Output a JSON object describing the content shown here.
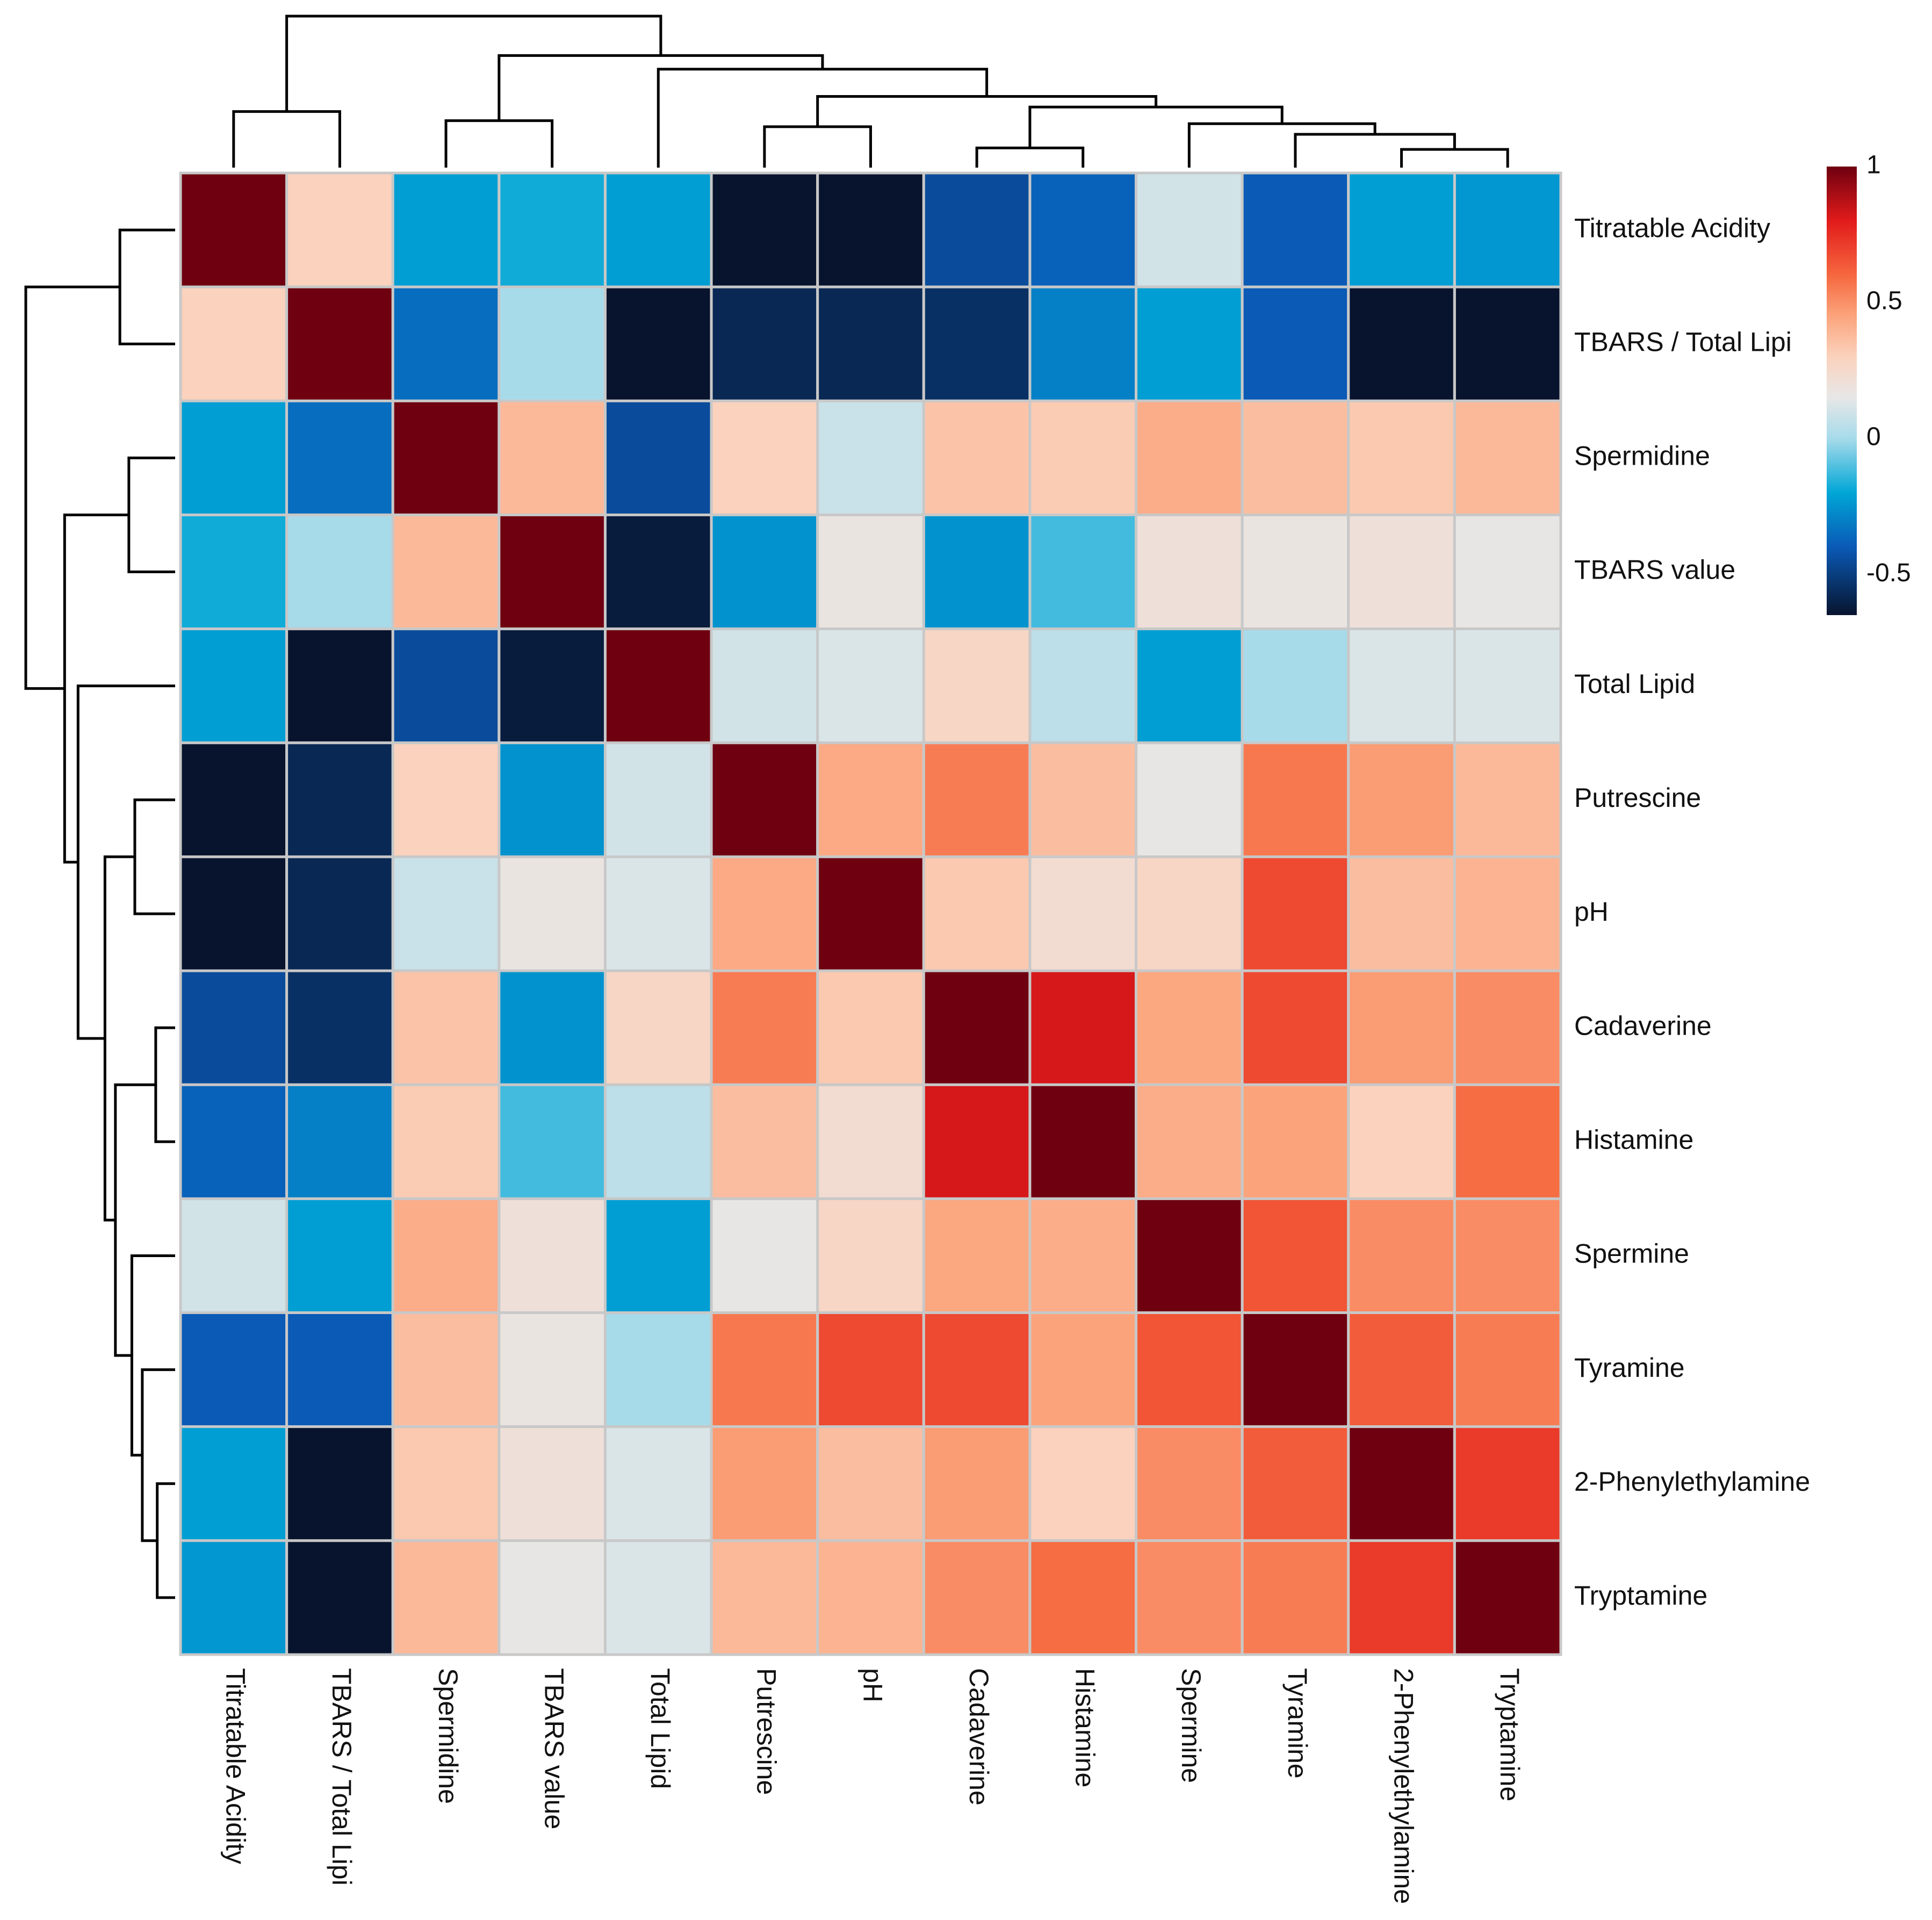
{
  "chart_data": {
    "type": "heatmap",
    "title": "",
    "row_labels": [
      "Titratable Acidity",
      "TBARS / Total Lipi",
      "Spermidine",
      "TBARS value",
      "Total Lipid",
      "Putrescine",
      "pH",
      "Cadaverine",
      "Histamine",
      "Spermine",
      "Tyramine",
      "2-Phenylethylamine",
      "Tryptamine"
    ],
    "col_labels": [
      "Titratable Acidity",
      "TBARS / Total Lipi",
      "Spermidine",
      "TBARS value",
      "Total Lipid",
      "Putrescine",
      "pH",
      "Cadaverine",
      "Histamine",
      "Spermine",
      "Tyramine",
      "2-Phenylethylamine",
      "Tryptamine"
    ],
    "values": [
      [
        1.0,
        0.3,
        -0.22,
        -0.18,
        -0.22,
        -0.65,
        -0.72,
        -0.45,
        -0.38,
        0.1,
        -0.4,
        -0.22,
        -0.24
      ],
      [
        0.3,
        1.0,
        -0.35,
        0.0,
        -0.7,
        -0.58,
        -0.58,
        -0.55,
        -0.3,
        -0.22,
        -0.4,
        -0.65,
        -0.65
      ],
      [
        -0.22,
        -0.35,
        1.0,
        0.38,
        -0.45,
        0.3,
        0.08,
        0.35,
        0.32,
        0.42,
        0.37,
        0.33,
        0.38
      ],
      [
        -0.18,
        0.0,
        0.38,
        1.0,
        -0.62,
        -0.25,
        0.17,
        -0.25,
        -0.12,
        0.2,
        0.17,
        0.2,
        0.16
      ],
      [
        -0.22,
        -0.7,
        -0.45,
        -0.62,
        1.0,
        0.1,
        0.12,
        0.27,
        0.05,
        -0.22,
        0.0,
        0.12,
        0.12
      ],
      [
        -0.65,
        -0.58,
        0.3,
        -0.25,
        0.1,
        1.0,
        0.43,
        0.55,
        0.37,
        0.16,
        0.56,
        0.47,
        0.38
      ],
      [
        -0.72,
        -0.58,
        0.08,
        0.17,
        0.12,
        0.43,
        1.0,
        0.33,
        0.23,
        0.27,
        0.68,
        0.37,
        0.4
      ],
      [
        -0.45,
        -0.55,
        0.35,
        -0.25,
        0.27,
        0.55,
        0.33,
        1.0,
        0.82,
        0.44,
        0.68,
        0.47,
        0.51
      ],
      [
        -0.38,
        -0.3,
        0.32,
        -0.12,
        0.05,
        0.37,
        0.23,
        0.82,
        1.0,
        0.42,
        0.45,
        0.3,
        0.59
      ],
      [
        0.1,
        -0.22,
        0.42,
        0.2,
        -0.22,
        0.16,
        0.27,
        0.44,
        0.42,
        1.0,
        0.65,
        0.51,
        0.51
      ],
      [
        -0.4,
        -0.4,
        0.37,
        0.17,
        0.0,
        0.56,
        0.68,
        0.68,
        0.45,
        0.65,
        1.0,
        0.63,
        0.55
      ],
      [
        -0.22,
        -0.65,
        0.33,
        0.2,
        0.12,
        0.47,
        0.37,
        0.47,
        0.3,
        0.51,
        0.63,
        1.0,
        0.72
      ],
      [
        -0.24,
        -0.65,
        0.38,
        0.16,
        0.12,
        0.38,
        0.4,
        0.51,
        0.59,
        0.51,
        0.55,
        0.72,
        1.0
      ]
    ],
    "colorbar": {
      "range": [
        -0.65,
        1.0
      ],
      "ticks": [
        1,
        0.5,
        0,
        -0.5
      ],
      "tick_labels": [
        "1",
        "0.5",
        "0",
        "-0.5"
      ],
      "stops": [
        {
          "value": -0.65,
          "color": "#08142e"
        },
        {
          "value": -0.4,
          "color": "#0a5ab6"
        },
        {
          "value": -0.2,
          "color": "#00a6d6"
        },
        {
          "value": 0.0,
          "color": "#a7dbea"
        },
        {
          "value": 0.15,
          "color": "#e7e7e7"
        },
        {
          "value": 0.3,
          "color": "#fbd2bd"
        },
        {
          "value": 0.45,
          "color": "#fba47c"
        },
        {
          "value": 0.6,
          "color": "#f6683f"
        },
        {
          "value": 0.8,
          "color": "#e21b1b"
        },
        {
          "value": 1.0,
          "color": "#6e0010"
        }
      ]
    },
    "dendrogram": {
      "leaf_order": [
        "Titratable Acidity",
        "TBARS / Total Lipi",
        "Spermidine",
        "TBARS value",
        "Total Lipid",
        "Putrescine",
        "pH",
        "Cadaverine",
        "Histamine",
        "Spermine",
        "Tyramine",
        "2-Phenylethylamine",
        "Tryptamine"
      ],
      "merges": [
        {
          "a": 0,
          "b": 1,
          "height": 0.37
        },
        {
          "a": 2,
          "b": 3,
          "height": 0.31
        },
        {
          "a": 7,
          "b": 8,
          "height": 0.13
        },
        {
          "a": 11,
          "b": 12,
          "height": 0.12
        },
        {
          "a": 10,
          "b": "n3",
          "height": 0.22
        },
        {
          "a": 9,
          "b": "n4",
          "height": 0.29
        },
        {
          "a": "n2",
          "b": "n5",
          "height": 0.4
        },
        {
          "a": 5,
          "b": 6,
          "height": 0.27
        },
        {
          "a": "n7",
          "b": "n6",
          "height": 0.47
        },
        {
          "a": 4,
          "b": "n8",
          "height": 0.65
        },
        {
          "a": "n1",
          "b": "n9",
          "height": 0.74
        },
        {
          "a": "n0",
          "b": "n10",
          "height": 1.0
        }
      ]
    }
  }
}
